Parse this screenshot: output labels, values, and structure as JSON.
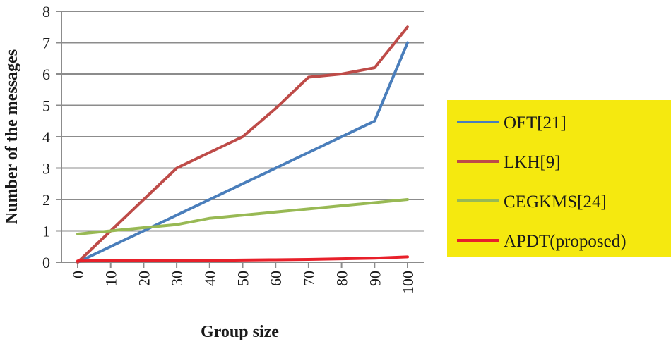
{
  "chart_data": {
    "type": "line",
    "title": "",
    "xlabel": "Group size",
    "ylabel": "Number of the messages",
    "x": [
      0,
      10,
      20,
      30,
      40,
      50,
      60,
      70,
      80,
      90,
      100
    ],
    "xlim": [
      0,
      100
    ],
    "ylim": [
      0,
      8
    ],
    "yticks": [
      0,
      1,
      2,
      3,
      4,
      5,
      6,
      7,
      8
    ],
    "grid": "horizontal",
    "legend_position": "right",
    "legend_background": "#f5e90f",
    "series": [
      {
        "name": "OFT[21]",
        "color": "#4a7ebb",
        "values": [
          0,
          0.5,
          1.0,
          1.5,
          2.0,
          2.5,
          3.0,
          3.5,
          4.0,
          4.5,
          7.0
        ]
      },
      {
        "name": "LKH[9]",
        "color": "#be4b48",
        "values": [
          0,
          1.0,
          2.0,
          3.0,
          3.5,
          4.0,
          4.9,
          5.9,
          6.0,
          6.2,
          7.5
        ]
      },
      {
        "name": "CEGKMS[24]",
        "color": "#98b954",
        "values": [
          0.9,
          1.0,
          1.1,
          1.2,
          1.4,
          1.5,
          1.6,
          1.7,
          1.8,
          1.9,
          2.0
        ]
      },
      {
        "name": "APDT(proposed)",
        "color": "#e8202a",
        "values": [
          0.04,
          0.05,
          0.05,
          0.06,
          0.06,
          0.07,
          0.08,
          0.09,
          0.11,
          0.13,
          0.17
        ]
      }
    ]
  }
}
